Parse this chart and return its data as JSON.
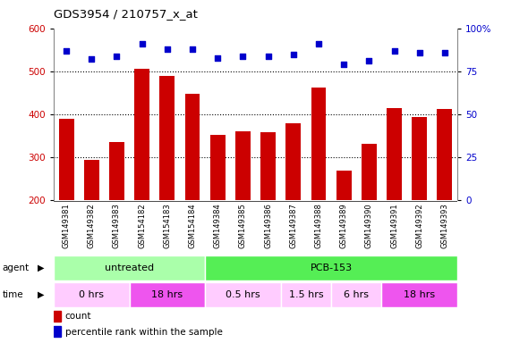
{
  "title": "GDS3954 / 210757_x_at",
  "samples": [
    "GSM149381",
    "GSM149382",
    "GSM149383",
    "GSM154182",
    "GSM154183",
    "GSM154184",
    "GSM149384",
    "GSM149385",
    "GSM149386",
    "GSM149387",
    "GSM149388",
    "GSM149389",
    "GSM149390",
    "GSM149391",
    "GSM149392",
    "GSM149393"
  ],
  "counts": [
    390,
    293,
    335,
    507,
    490,
    448,
    352,
    361,
    358,
    378,
    462,
    268,
    330,
    415,
    393,
    413
  ],
  "percentile_ranks": [
    87,
    82,
    84,
    91,
    88,
    88,
    83,
    84,
    84,
    85,
    91,
    79,
    81,
    87,
    86,
    86
  ],
  "bar_color": "#cc0000",
  "dot_color": "#0000cc",
  "ylim_left": [
    200,
    600
  ],
  "ylim_right": [
    0,
    100
  ],
  "yticks_left": [
    200,
    300,
    400,
    500,
    600
  ],
  "yticks_right": [
    0,
    25,
    50,
    75,
    100
  ],
  "agent_groups": [
    {
      "label": "untreated",
      "start": 0,
      "end": 6,
      "color": "#aaffaa"
    },
    {
      "label": "PCB-153",
      "start": 6,
      "end": 16,
      "color": "#55ee55"
    }
  ],
  "time_groups": [
    {
      "label": "0 hrs",
      "start": 0,
      "end": 3,
      "color": "#ffccff"
    },
    {
      "label": "18 hrs",
      "start": 3,
      "end": 6,
      "color": "#ee55ee"
    },
    {
      "label": "0.5 hrs",
      "start": 6,
      "end": 9,
      "color": "#ffccff"
    },
    {
      "label": "1.5 hrs",
      "start": 9,
      "end": 11,
      "color": "#ffccff"
    },
    {
      "label": "6 hrs",
      "start": 11,
      "end": 13,
      "color": "#ffccff"
    },
    {
      "label": "18 hrs",
      "start": 13,
      "end": 16,
      "color": "#ee55ee"
    }
  ],
  "bar_width": 0.6,
  "tick_area_color": "#cccccc",
  "background_color": "#ffffff"
}
